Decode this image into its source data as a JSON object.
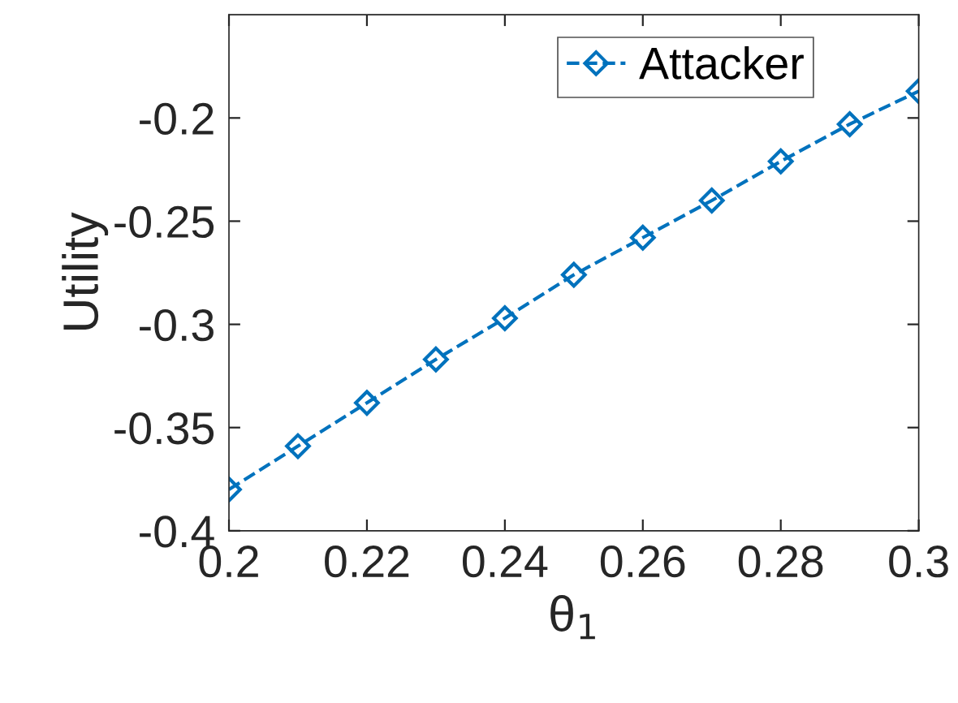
{
  "chart_data": {
    "type": "line",
    "xlabel": "θ$_{1}$",
    "ylabel": "Utility",
    "x": [
      0.2,
      0.21,
      0.22,
      0.23,
      0.24,
      0.25,
      0.26,
      0.27,
      0.28,
      0.29,
      0.3
    ],
    "series": [
      {
        "name": "Attacker",
        "color": "#0072bd",
        "values": [
          -0.38,
          -0.359,
          -0.338,
          -0.317,
          -0.297,
          -0.276,
          -0.258,
          -0.24,
          -0.221,
          -0.203,
          -0.187
        ]
      }
    ],
    "xlim": [
      0.2,
      0.3
    ],
    "ylim": [
      -0.4,
      -0.15
    ],
    "xticks": [
      0.2,
      0.22,
      0.24,
      0.26,
      0.28,
      0.3
    ],
    "yticks": [
      -0.4,
      -0.35,
      -0.3,
      -0.25,
      -0.2
    ],
    "marker": "diamond",
    "line_style": "dashed",
    "legend": "top right",
    "grid": false
  }
}
